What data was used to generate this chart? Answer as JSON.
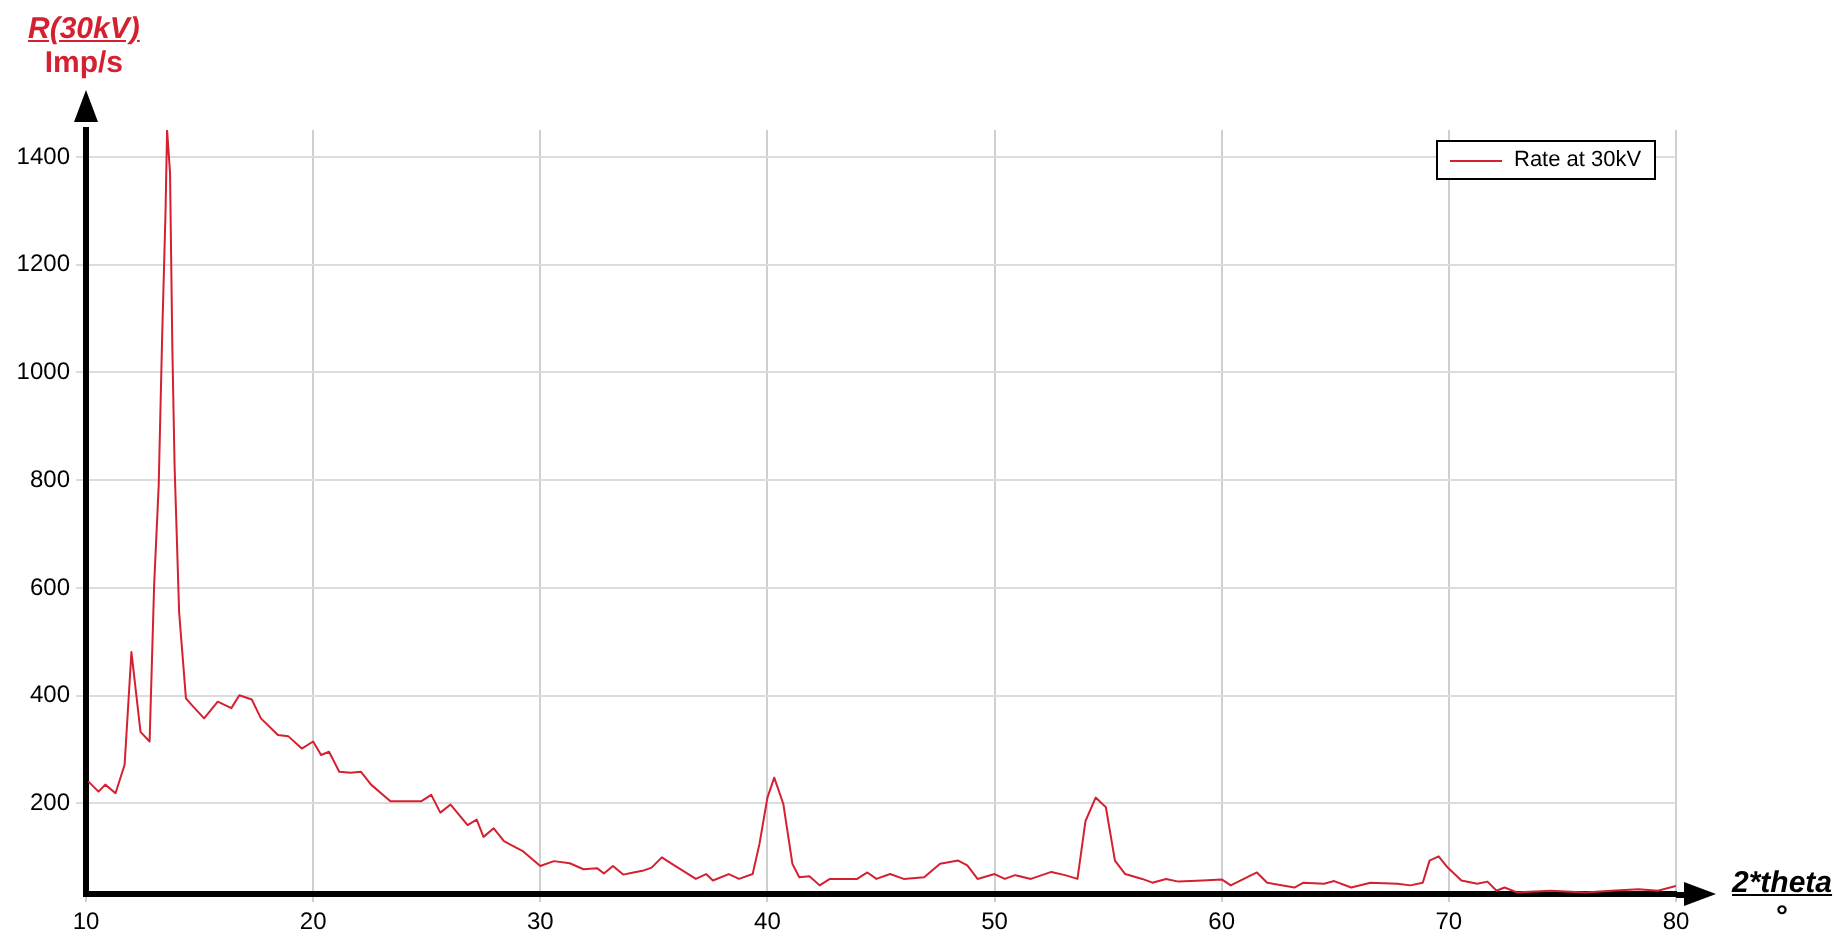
{
  "chart_data": {
    "type": "line",
    "xlabel": "2*theta\n°",
    "ylabel": "R(30kV)\nImp/s",
    "xlim": [
      10,
      80
    ],
    "xticks": [
      10,
      20,
      30,
      40,
      50,
      60,
      70,
      80
    ],
    "ylim": [
      32,
      1450
    ],
    "yticks": [
      200,
      400,
      600,
      800,
      1000,
      1200,
      1400
    ],
    "grid": true,
    "legend": "top right",
    "marker": "none",
    "line_style": "solid",
    "series": [
      {
        "name": "Rate at 30kV",
        "color": "#d42030",
        "x": [
          10.1,
          10.55,
          10.85,
          11.3,
          11.7,
          12.0,
          12.2,
          12.4,
          12.8,
          13.0,
          13.2,
          13.35,
          13.5,
          13.57,
          13.7,
          13.8,
          13.9,
          14.1,
          14.4,
          14.65,
          15.2,
          15.8,
          16.4,
          16.75,
          17.3,
          17.7,
          18.45,
          18.9,
          19.5,
          20.0,
          20.35,
          20.7,
          21.15,
          21.65,
          22.1,
          22.55,
          23.4,
          24.3,
          24.75,
          25.2,
          25.6,
          26.05,
          26.8,
          27.2,
          27.5,
          27.95,
          28.4,
          29.25,
          30.0,
          30.6,
          31.3,
          31.9,
          32.5,
          32.8,
          33.2,
          33.65,
          34.1,
          34.5,
          34.9,
          35.35,
          35.9,
          36.85,
          37.3,
          37.6,
          38.3,
          38.75,
          39.35,
          39.65,
          40.0,
          40.3,
          40.7,
          41.1,
          41.4,
          41.85,
          42.3,
          42.75,
          43.95,
          44.4,
          44.8,
          45.4,
          46.0,
          46.9,
          47.6,
          48.4,
          48.8,
          49.25,
          50.0,
          50.45,
          50.9,
          51.6,
          52.5,
          53.1,
          53.65,
          54.0,
          54.45,
          54.9,
          55.3,
          55.75,
          56.5,
          56.95,
          57.55,
          58.1,
          59.15,
          60.0,
          60.4,
          61.55,
          62.0,
          63.2,
          63.6,
          64.5,
          64.95,
          65.7,
          66.55,
          67.75,
          68.3,
          68.85,
          69.15,
          69.55,
          69.95,
          70.55,
          71.25,
          71.7,
          72.1,
          72.45,
          73.0,
          74.5,
          76.0,
          77.15,
          78.35,
          79.2,
          80.0
        ],
        "values": [
          241,
          222,
          235,
          219,
          272,
          481,
          407,
          333,
          315,
          605,
          790,
          1062,
          1296,
          1450,
          1370,
          1049,
          827,
          555,
          395,
          383,
          358,
          389,
          377,
          401,
          393,
          358,
          327,
          325,
          302,
          315,
          290,
          296,
          259,
          257,
          259,
          235,
          204,
          204,
          204,
          216,
          183,
          198,
          160,
          170,
          138,
          154,
          130,
          111,
          84,
          93,
          89,
          78,
          80,
          70,
          84,
          68,
          72,
          75,
          81,
          100,
          85,
          60,
          69,
          57,
          69,
          60,
          69,
          125,
          211,
          248,
          199,
          88,
          63,
          65,
          48,
          60,
          60,
          72,
          60,
          69,
          60,
          63,
          88,
          94,
          85,
          60,
          69,
          60,
          67,
          60,
          73,
          67,
          60,
          167,
          211,
          193,
          94,
          69,
          60,
          53,
          60,
          55,
          57,
          59,
          48,
          72,
          53,
          44,
          53,
          51,
          56,
          44,
          53,
          51,
          48,
          53,
          94,
          102,
          81,
          57,
          51,
          55,
          38,
          44,
          35,
          38,
          35,
          38,
          41,
          38,
          47
        ]
      }
    ]
  }
}
